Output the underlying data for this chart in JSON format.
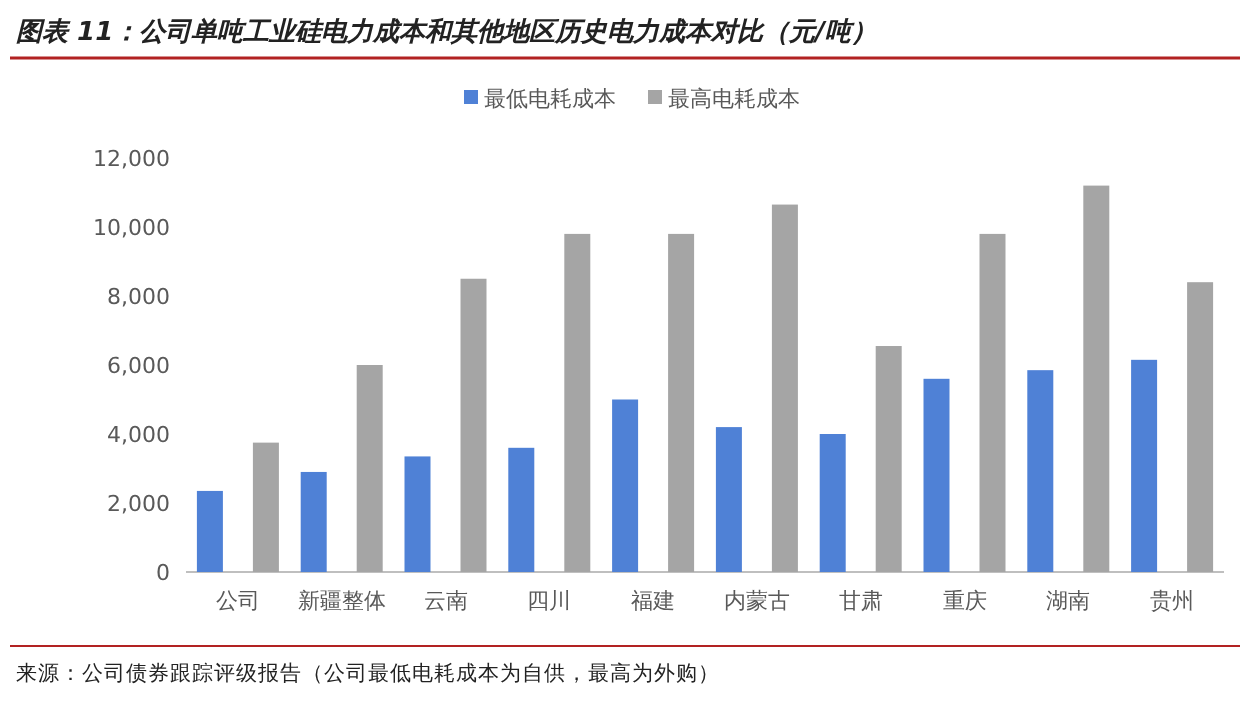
{
  "chart_data": {
    "type": "bar",
    "title": "图表 11：公司单吨工业硅电力成本和其他地区历史电力成本对比（元/吨）",
    "categories": [
      "公司",
      "新疆整体",
      "云南",
      "四川",
      "福建",
      "内蒙古",
      "甘肃",
      "重庆",
      "湖南",
      "贵州"
    ],
    "series": [
      {
        "name": "最低电耗成本",
        "color": "#4f81d6",
        "values": [
          2350,
          2900,
          3350,
          3600,
          5000,
          4200,
          4000,
          5600,
          5850,
          6150
        ]
      },
      {
        "name": "最高电耗成本",
        "color": "#a5a5a5",
        "values": [
          3750,
          6000,
          8500,
          9800,
          9800,
          10650,
          6550,
          9800,
          11200,
          8400
        ]
      }
    ],
    "ylim": [
      0,
      12000
    ],
    "yticks": [
      {
        "value": 0,
        "label": "0"
      },
      {
        "value": 2000,
        "label": "2,000"
      },
      {
        "value": 4000,
        "label": "4,000"
      },
      {
        "value": 6000,
        "label": "6,000"
      },
      {
        "value": 8000,
        "label": "8,000"
      },
      {
        "value": 10000,
        "label": "10,000"
      },
      {
        "value": 12000,
        "label": "12,000"
      }
    ],
    "legend": "top",
    "annotations": [
      "来源：公司债券跟踪评级报告（公司最低电耗成本为自供，最高为外购）"
    ]
  }
}
